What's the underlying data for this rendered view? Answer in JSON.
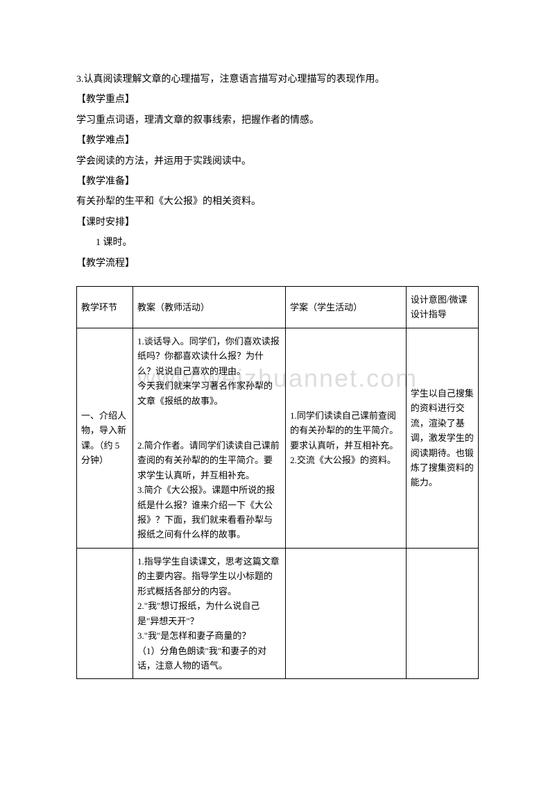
{
  "intro": {
    "line1": "3.认真阅读理解文章的心理描写，注意语言描写对心理描写的表现作用。",
    "emphasis_label": "【教学重点】",
    "emphasis_text": "学习重点词语，理清文章的叙事线索，把握作者的情感。",
    "difficulty_label": "【教学难点】",
    "difficulty_text": "学会阅读的方法，并运用于实践阅读中。",
    "prep_label": "【教学准备】",
    "prep_text": "有关孙犁的生平和《大公报》的相关资料。",
    "schedule_label": "【课时安排】",
    "schedule_text": "1 课时。",
    "flow_label": "【教学流程】"
  },
  "table": {
    "header": {
      "col1": "教学环节",
      "col2": "教案（教师活动）",
      "col3": "学案（学生活动）",
      "col4": "设计意图/微课设计指导"
    },
    "row2": {
      "col1": "一、介绍人物，导入新课。（约 5分钟）",
      "col2": "1.谈话导入。同学们，你们喜欢读报纸吗？你都喜欢读什么报？为什么？说说自己喜欢的理由。\n今天我们就来学习著名作家孙犁的文章《报纸的故事》。\n\n2.简介作者。请同学们读读自己课前查阅的有关孙犁的的生平简介。要求学生认真听，并互相补充。\n3.简介《大公报》。课题中所说的报纸是什么报？谁来介绍一下《大公报》？下面，我们就来看看孙犁与报纸之间有什么样的故事。",
      "col3": "1.同学们读读自己课前查阅的有关孙犁的的生平简介。要求认真听，并互相补充。\n2.交流《大公报》的资料。",
      "col4": "学生以自己搜集的资料进行交流，渲染了基调，激发学生的阅读期待。也锻炼了搜集资料的能力。"
    },
    "row3": {
      "col1": "",
      "col2": "1.指导学生自读课文，思考这篇文章的主要内容。指导学生以小标题的形式概括各部分的内容。\n2.\"我\"想订报纸，为什么说自己是\"异想天开\"？\n3.\"我\"是怎样和妻子商量的？\n（1）分角色朗读\"我\"和妻子的对话，注意人物的语气。",
      "col3": "",
      "col4": ""
    }
  },
  "watermark": "www.weizhuannet.com"
}
